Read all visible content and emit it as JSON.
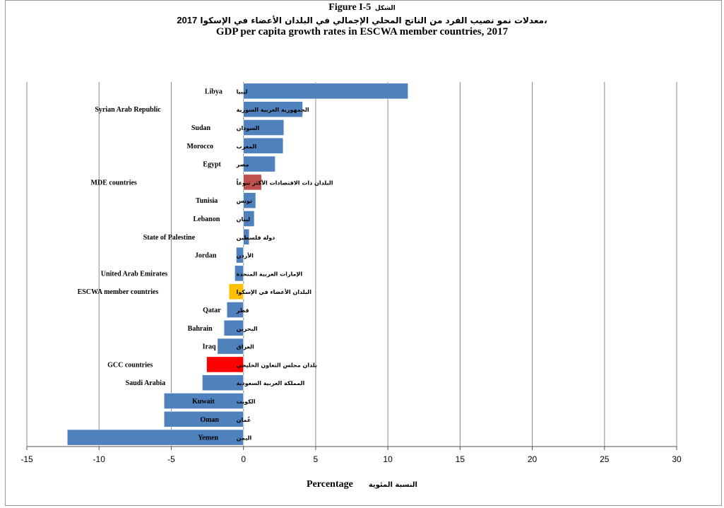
{
  "header": {
    "figure_label": "Figure I-5",
    "figure_label_ar": "الشكل",
    "title_ar": "معدلات نمو نصيب الفرد من الناتج المحلي الإجمالي في البلدان الأعضاء في الإسكوا،",
    "title_ar_year": "2017",
    "title_en": "GDP per capita growth rates in ESCWA member countries, 2017"
  },
  "axis": {
    "xlabel_en": "Percentage",
    "xlabel_ar": "النسبة المئوية"
  },
  "colors": {
    "default": "#4f81bd",
    "mde": "#c0504d",
    "escwa": "#ffc000",
    "gcc": "#ff0000"
  },
  "chart_data": {
    "type": "bar",
    "orientation": "horizontal",
    "title": "GDP per capita growth rates in ESCWA member countries, 2017",
    "xlabel": "Percentage",
    "xlim": [
      -15,
      30
    ],
    "xticks": [
      -15,
      -10,
      -5,
      0,
      5,
      10,
      15,
      20,
      25,
      30
    ],
    "grid": true,
    "categories": [
      {
        "en": "Libya",
        "ar": "ليبيا",
        "value": 11.4,
        "color": "default"
      },
      {
        "en": "Syrian Arab Republic",
        "ar": "الجمهورية العربية السورية",
        "value": 4.1,
        "color": "default"
      },
      {
        "en": "Sudan",
        "ar": "السودان",
        "value": 2.8,
        "color": "default"
      },
      {
        "en": "Morocco",
        "ar": "المغرب",
        "value": 2.75,
        "color": "default"
      },
      {
        "en": "Egypt",
        "ar": "مصر",
        "value": 2.2,
        "color": "default"
      },
      {
        "en": "MDE countries",
        "ar": "البلدان ذات الاقتصادات الأكثر تنوعاً",
        "value": 1.25,
        "color": "mde"
      },
      {
        "en": "Tunisia",
        "ar": "تونس",
        "value": 0.85,
        "color": "default"
      },
      {
        "en": "Lebanon",
        "ar": "لبنان",
        "value": 0.75,
        "color": "default"
      },
      {
        "en": "State of Palestine",
        "ar": "دولة فلسطين",
        "value": 0.4,
        "color": "default"
      },
      {
        "en": "Jordan",
        "ar": "الأردن",
        "value": -0.5,
        "color": "default"
      },
      {
        "en": "United Arab Emirates",
        "ar": "الإمارات العربية المتحدة",
        "value": -0.6,
        "color": "default"
      },
      {
        "en": "ESCWA member countries",
        "ar": "البلدان الأعضاء في الإسكوا",
        "value": -1.0,
        "color": "escwa"
      },
      {
        "en": "Qatar",
        "ar": "قطر",
        "value": -1.15,
        "color": "default"
      },
      {
        "en": "Bahrain",
        "ar": "البحرين",
        "value": -1.35,
        "color": "default"
      },
      {
        "en": "Iraq",
        "ar": "العراق",
        "value": -1.8,
        "color": "default"
      },
      {
        "en": "GCC countries",
        "ar": "بلدان مجلس التعاون الخليجي",
        "value": -2.55,
        "color": "gcc"
      },
      {
        "en": "Saudi Arabia",
        "ar": "المملكة العربية السعودية",
        "value": -2.85,
        "color": "default"
      },
      {
        "en": "Kuwait",
        "ar": "الكويت",
        "value": -5.5,
        "color": "default"
      },
      {
        "en": "Oman",
        "ar": "عُمان",
        "value": -5.5,
        "color": "default"
      },
      {
        "en": "Yemen",
        "ar": "اليمن",
        "value": -12.2,
        "color": "default"
      }
    ]
  }
}
